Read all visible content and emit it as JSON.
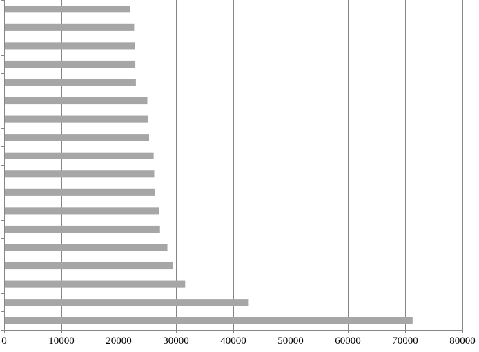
{
  "chart_data": {
    "type": "bar",
    "orientation": "horizontal",
    "categories": [
      "",
      "",
      "",
      "",
      "",
      "",
      "",
      "",
      "",
      "",
      "",
      "",
      "",
      "",
      "",
      "",
      "",
      ""
    ],
    "values": [
      22000,
      22700,
      22800,
      22900,
      23000,
      25000,
      25100,
      25300,
      26100,
      26200,
      26300,
      27000,
      27200,
      28500,
      29400,
      31600,
      42700,
      71300
    ],
    "xlim": [
      0,
      80000
    ],
    "xticks": [
      0,
      10000,
      20000,
      30000,
      40000,
      50000,
      60000,
      70000,
      80000
    ],
    "xtick_labels": [
      "0",
      "10000",
      "20000",
      "30000",
      "40000",
      "50000",
      "60000",
      "70000",
      "80000"
    ],
    "grid": "vertical major gridlines",
    "legend": "none",
    "title": "",
    "xlabel": "",
    "ylabel": "",
    "colors": {
      "bar": "#a6a6a6",
      "grid": "#868686",
      "axis": "#868686",
      "text": "#000000"
    }
  }
}
